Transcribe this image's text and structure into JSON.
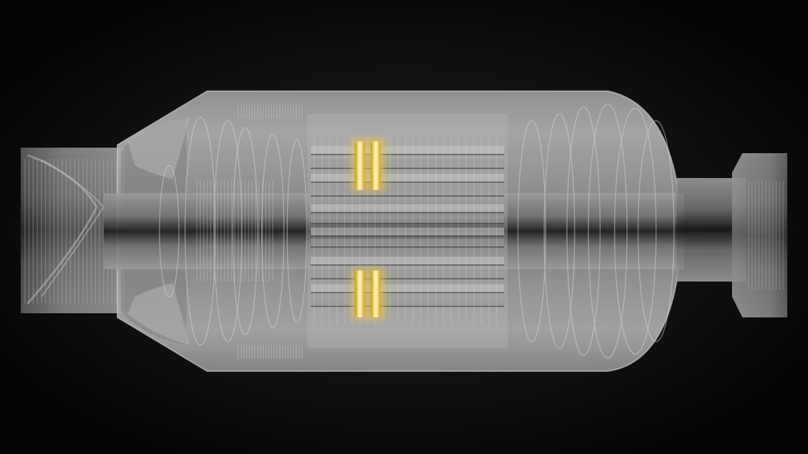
{
  "scene": {
    "subject": "xray-mechanical-assembly-render",
    "colors": {
      "background": "#000000",
      "background_glow": "#151515",
      "body_light": "#a6a6a6",
      "body_mid": "#8a8a8a",
      "body_dark": "#5e5e5e",
      "edge_line": "#c8c8c8",
      "shaft_dark": "#111111",
      "highlight": "#f2c23a",
      "highlight_core": "#fff2b0"
    }
  }
}
